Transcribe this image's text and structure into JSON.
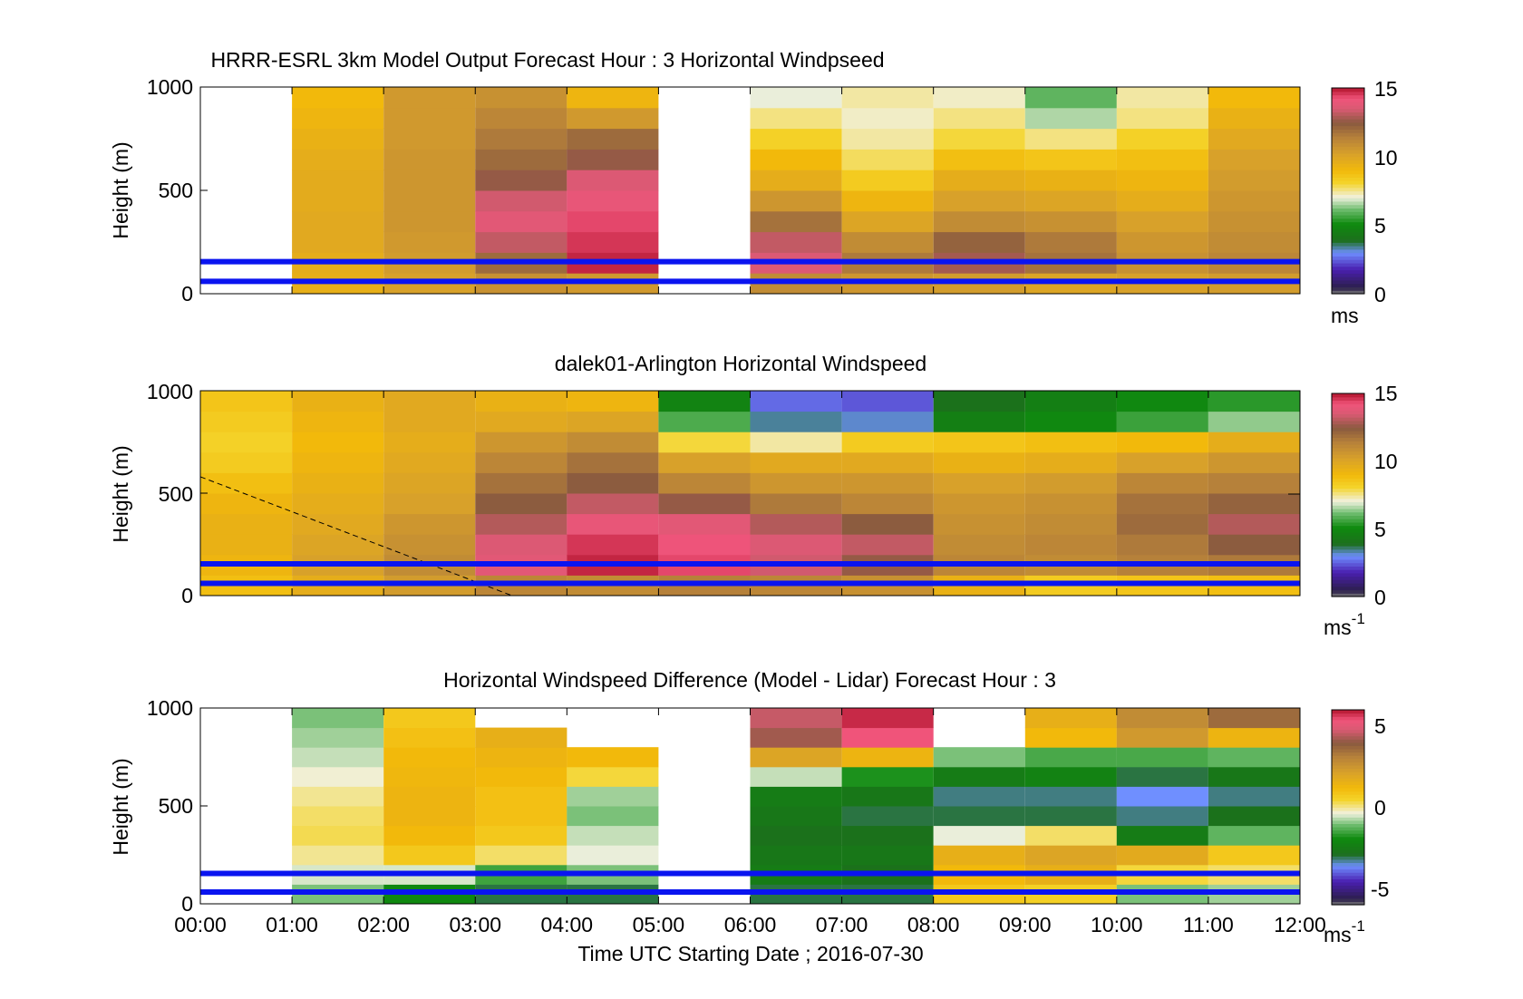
{
  "figure": {
    "xlabel": "Time UTC  Starting Date ; 2016-07-30",
    "x_ticks": [
      "00:00",
      "01:00",
      "02:00",
      "03:00",
      "04:00",
      "05:00",
      "06:00",
      "07:00",
      "08:00",
      "09:00",
      "10:00",
      "11:00",
      "12:00"
    ]
  },
  "chart_data": [
    {
      "type": "heatmap",
      "title": "HRRR-ESRL 3km Model Output   Forecast Hour : 3 Horizontal Windpseed",
      "ylabel": "Height (m)",
      "xlim": [
        0,
        12
      ],
      "ylim": [
        0,
        1000
      ],
      "y_ticks": [
        "0",
        "500",
        "1000"
      ],
      "colorbar": {
        "ticks": [
          "0",
          "5",
          "10",
          "15"
        ],
        "range": [
          0,
          15
        ],
        "unit": "ms",
        "unit_sup": ""
      },
      "reference_lines_m": [
        60,
        155
      ],
      "columns": [
        {
          "hour": 0,
          "missing": true
        },
        {
          "hour": 1,
          "profile": [
            9.5,
            9.6,
            9.8,
            9.8,
            9.7,
            9.7,
            9.6,
            9.4,
            9.2,
            9.0
          ]
        },
        {
          "hour": 2,
          "profile": [
            10.2,
            10.4,
            10.5,
            10.6,
            10.6,
            10.6,
            10.6,
            10.5,
            10.5,
            10.5
          ]
        },
        {
          "hour": 3,
          "profile": [
            10.8,
            12.0,
            13.2,
            13.8,
            13.4,
            12.6,
            12.0,
            11.6,
            11.2,
            10.8
          ]
        },
        {
          "hour": 4,
          "profile": [
            10.5,
            14.8,
            14.6,
            14.4,
            14.0,
            13.6,
            12.6,
            12.0,
            10.5,
            9.2
          ]
        },
        {
          "hour": 5,
          "missing": true
        },
        {
          "hour": 6,
          "profile": [
            11.0,
            13.6,
            13.2,
            11.8,
            10.6,
            9.6,
            9.0,
            8.2,
            7.6,
            7.0
          ]
        },
        {
          "hour": 7,
          "profile": [
            10.6,
            11.6,
            11.0,
            10.0,
            9.2,
            8.4,
            7.8,
            7.4,
            7.2,
            7.4
          ]
        },
        {
          "hour": 8,
          "profile": [
            10.4,
            12.8,
            12.2,
            11.0,
            10.2,
            9.6,
            8.8,
            8.0,
            7.6,
            7.2
          ]
        },
        {
          "hour": 9,
          "profile": [
            10.0,
            11.8,
            11.6,
            10.8,
            10.0,
            9.4,
            8.6,
            7.6,
            6.6,
            6.0
          ]
        },
        {
          "hour": 10,
          "profile": [
            10.2,
            10.8,
            10.6,
            10.2,
            9.6,
            9.2,
            8.8,
            8.2,
            7.6,
            7.4
          ]
        },
        {
          "hour": 11,
          "profile": [
            10.4,
            11.2,
            11.0,
            10.8,
            10.6,
            10.4,
            10.2,
            9.8,
            9.4,
            9.0
          ]
        }
      ]
    },
    {
      "type": "heatmap",
      "title": "dalek01-Arlington  Horizontal Windspeed",
      "ylabel": "Height (m)",
      "xlim": [
        0,
        12
      ],
      "ylim": [
        0,
        1000
      ],
      "y_ticks": [
        "0",
        "500",
        "1000"
      ],
      "colorbar": {
        "ticks": [
          "0",
          "5",
          "10",
          "15"
        ],
        "range": [
          0,
          15
        ],
        "unit": "ms",
        "unit_sup": "-1"
      },
      "reference_lines_m": [
        60,
        155
      ],
      "boundary_layer_line": {
        "x_hours": [
          0.0,
          3.4
        ],
        "y_m": [
          580,
          0
        ]
      },
      "columns": [
        {
          "hour": 0,
          "profile": [
            8.8,
            9.2,
            9.4,
            9.4,
            9.2,
            8.8,
            8.4,
            8.2,
            8.4,
            8.6
          ]
        },
        {
          "hour": 1,
          "profile": [
            9.6,
            10.2,
            10.0,
            9.8,
            9.6,
            9.4,
            9.2,
            9.0,
            9.2,
            9.4
          ]
        },
        {
          "hour": 2,
          "profile": [
            10.4,
            11.0,
            10.8,
            10.6,
            10.2,
            10.0,
            9.8,
            9.6,
            9.8,
            9.8
          ]
        },
        {
          "hour": 3,
          "profile": [
            11.2,
            13.8,
            13.6,
            13.0,
            12.4,
            11.8,
            11.2,
            10.6,
            9.8,
            9.4
          ]
        },
        {
          "hour": 4,
          "profile": [
            11.0,
            14.8,
            14.6,
            14.0,
            13.2,
            12.4,
            11.8,
            11.0,
            10.0,
            9.2
          ]
        },
        {
          "hour": 5,
          "profile": [
            11.4,
            14.4,
            14.2,
            13.8,
            12.6,
            11.2,
            10.2,
            8.0,
            5.8,
            4.8
          ]
        },
        {
          "hour": 6,
          "profile": [
            11.2,
            13.4,
            13.6,
            13.0,
            11.6,
            10.6,
            9.8,
            7.4,
            3.4,
            2.6
          ]
        },
        {
          "hour": 7,
          "profile": [
            10.8,
            12.6,
            13.2,
            12.4,
            11.2,
            10.6,
            9.8,
            8.4,
            3.2,
            2.4
          ]
        },
        {
          "hour": 8,
          "profile": [
            9.4,
            11.2,
            11.0,
            10.8,
            10.6,
            10.2,
            9.4,
            8.6,
            4.6,
            4.0
          ]
        },
        {
          "hour": 9,
          "profile": [
            8.4,
            11.0,
            11.2,
            11.0,
            10.8,
            10.4,
            9.6,
            8.8,
            5.0,
            4.6
          ]
        },
        {
          "hour": 10,
          "profile": [
            8.6,
            11.4,
            11.6,
            12.0,
            11.8,
            11.2,
            10.2,
            9.0,
            5.6,
            5.0
          ]
        },
        {
          "hour": 11,
          "profile": [
            8.8,
            11.6,
            12.4,
            13.0,
            12.2,
            11.4,
            10.6,
            9.6,
            6.4,
            5.4
          ]
        }
      ]
    },
    {
      "type": "heatmap",
      "title": "Horizontal Windspeed Difference (Model - Lidar) Forecast Hour : 3",
      "ylabel": "Height (m)",
      "xlim": [
        0,
        12
      ],
      "ylim": [
        0,
        1000
      ],
      "y_ticks": [
        "0",
        "500",
        "1000"
      ],
      "colorbar": {
        "ticks": [
          "-5",
          "0",
          "5"
        ],
        "range": [
          -6,
          6
        ],
        "unit": "ms",
        "unit_sup": "-1"
      },
      "reference_lines_m": [
        60,
        155
      ],
      "columns": [
        {
          "hour": 0,
          "missing": true
        },
        {
          "hour": 1,
          "profile": [
            -1.0,
            -0.5,
            0.0,
            0.3,
            0.2,
            0.0,
            -0.3,
            -0.6,
            -0.8,
            -1.0
          ]
        },
        {
          "hour": 2,
          "profile": [
            -2.0,
            -0.5,
            0.8,
            1.2,
            1.4,
            1.4,
            1.3,
            1.2,
            1.0,
            0.8
          ]
        },
        {
          "hour": 3,
          "profile": [
            -3.0,
            -1.5,
            0.2,
            0.8,
            1.0,
            1.0,
            1.2,
            1.4,
            1.6,
            null
          ]
        },
        {
          "hour": 4,
          "profile": [
            -3.0,
            -1.0,
            -0.4,
            -0.6,
            -1.0,
            -0.8,
            0.4,
            1.2,
            null,
            null
          ]
        },
        {
          "hour": 5,
          "missing": true
        },
        {
          "hour": 6,
          "profile": [
            -3.0,
            -2.4,
            -2.6,
            -2.8,
            -2.6,
            -2.4,
            -0.6,
            2.0,
            4.2,
            4.6
          ]
        },
        {
          "hour": 7,
          "profile": [
            -3.0,
            -2.8,
            -2.6,
            -2.8,
            -3.0,
            -2.6,
            -1.8,
            1.4,
            5.4,
            5.8
          ]
        },
        {
          "hour": 8,
          "profile": [
            0.8,
            1.2,
            1.6,
            -0.4,
            -3.0,
            -3.2,
            -2.4,
            -1.0,
            null,
            null
          ]
        },
        {
          "hour": 9,
          "profile": [
            0.6,
            1.6,
            2.0,
            0.2,
            -3.0,
            -3.2,
            -2.2,
            -1.4,
            1.2,
            1.6
          ]
        },
        {
          "hour": 10,
          "profile": [
            -1.0,
            0.4,
            1.8,
            -2.4,
            -3.2,
            -3.6,
            -3.0,
            -1.4,
            2.4,
            2.8
          ]
        },
        {
          "hour": 11,
          "profile": [
            -0.8,
            0.2,
            0.8,
            -1.2,
            -2.8,
            -3.2,
            -2.6,
            -1.2,
            1.4,
            3.6
          ]
        }
      ]
    }
  ]
}
